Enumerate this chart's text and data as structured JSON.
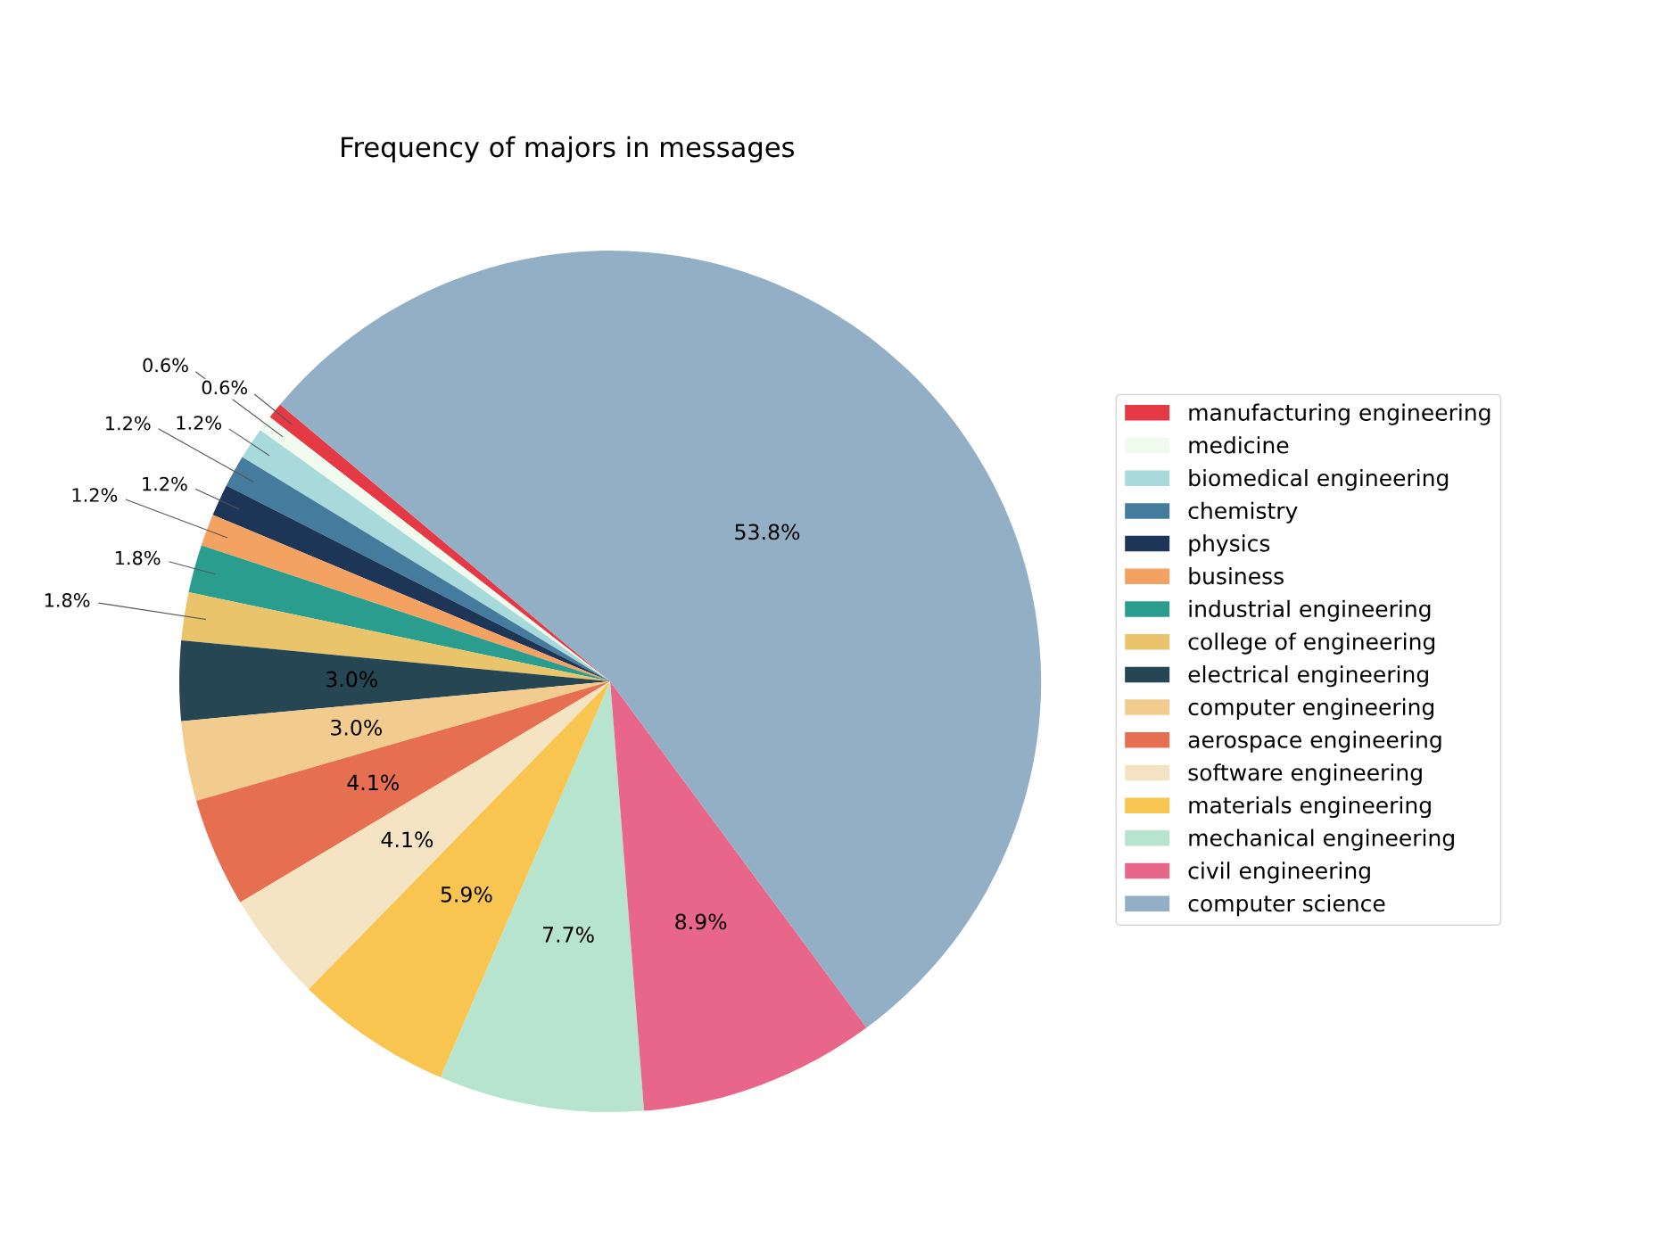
{
  "chart_data": {
    "type": "pie",
    "title": "Frequency of majors in messages",
    "categories": [
      "manufacturing engineering",
      "medicine",
      "biomedical engineering",
      "chemistry",
      "physics",
      "business",
      "industrial engineering",
      "college of engineering",
      "electrical engineering",
      "computer engineering",
      "aerospace engineering",
      "software engineering",
      "materials engineering",
      "mechanical engineering",
      "civil engineering",
      "computer science"
    ],
    "values": [
      0.6,
      0.6,
      1.2,
      1.2,
      1.2,
      1.2,
      1.8,
      1.8,
      3.0,
      3.0,
      4.1,
      4.1,
      5.9,
      7.7,
      8.9,
      53.8
    ],
    "value_labels": [
      "0.6%",
      "0.6%",
      "1.2%",
      "1.2%",
      "1.2%",
      "1.2%",
      "1.8%",
      "1.8%",
      "3.0%",
      "3.0%",
      "4.1%",
      "4.1%",
      "5.9%",
      "7.7%",
      "8.9%",
      "53.8%"
    ],
    "colors": [
      "#e63946",
      "#f1faee",
      "#a8dadc",
      "#457b9d",
      "#1d3557",
      "#f4a261",
      "#2a9d8f",
      "#e9c46a",
      "#264653",
      "#f2cc8f",
      "#e76f51",
      "#f5e4c3",
      "#f7c550",
      "#b7e4cf",
      "#e9668b",
      "#92afc6"
    ],
    "legend": "right"
  }
}
